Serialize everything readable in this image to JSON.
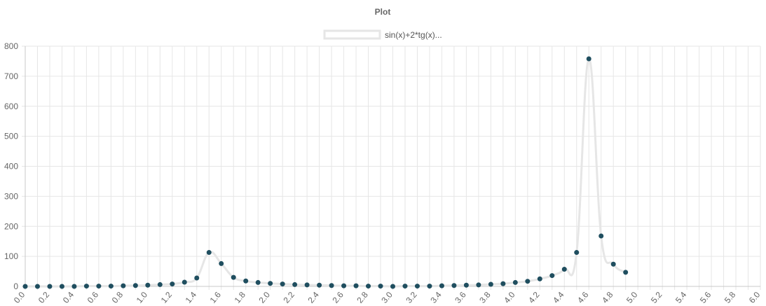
{
  "chart_data": {
    "type": "line",
    "title": "Plot",
    "legend": {
      "position": "top"
    },
    "grid": true,
    "x_ticks": [
      "0.0",
      "0.2",
      "0.4",
      "0.6",
      "0.8",
      "1.0",
      "1.2",
      "1.4",
      "1.6",
      "1.8",
      "2.0",
      "2.2",
      "2.4",
      "2.6",
      "2.8",
      "3.0",
      "3.2",
      "3.4",
      "3.6",
      "3.8",
      "4.0",
      "4.2",
      "4.4",
      "4.6",
      "4.8",
      "5.0",
      "5.2",
      "5.4",
      "5.6",
      "5.8",
      "6.0"
    ],
    "y_ticks": [
      "0",
      "100",
      "200",
      "300",
      "400",
      "500",
      "600",
      "700",
      "800"
    ],
    "xlim": [
      0,
      6
    ],
    "ylim": [
      0,
      800
    ],
    "line_color": "#e6e6e6",
    "point_color": "#1f4e5f",
    "series": [
      {
        "name": "sin(x)+2*tg(x)...",
        "x": [
          0.0,
          0.1,
          0.2,
          0.3,
          0.4,
          0.5,
          0.6,
          0.7,
          0.8,
          0.9,
          1.0,
          1.1,
          1.2,
          1.3,
          1.4,
          1.5,
          1.6,
          1.7,
          1.8,
          1.9,
          2.0,
          2.1,
          2.2,
          2.3,
          2.4,
          2.5,
          2.6,
          2.7,
          2.8,
          2.9,
          3.0,
          3.1,
          3.2,
          3.3,
          3.4,
          3.5,
          3.6,
          3.7,
          3.8,
          3.9,
          4.0,
          4.1,
          4.2,
          4.3,
          4.4,
          4.5,
          4.6,
          4.7,
          4.8,
          4.9
        ],
        "y": [
          0,
          0,
          0,
          0,
          0,
          1,
          1,
          1,
          2,
          3,
          4,
          6,
          8,
          14,
          28,
          113,
          76,
          30,
          18,
          13,
          10,
          8,
          6,
          5,
          4,
          3,
          2,
          2,
          1,
          1,
          0,
          1,
          1,
          1,
          2,
          3,
          4,
          5,
          7,
          9,
          13,
          17,
          25,
          36,
          57,
          113,
          758,
          168,
          74,
          47
        ]
      }
    ]
  }
}
